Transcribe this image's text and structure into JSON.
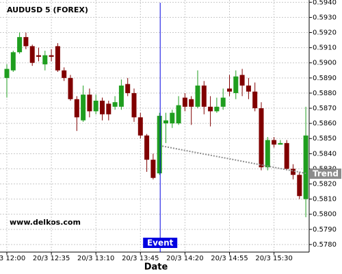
{
  "chart_data": {
    "type": "candlestick",
    "title": "AUDUSD 5 (FOREX)",
    "watermark": "www.delkos.com",
    "x_label": "Date",
    "categories": [
      "20/3 12:00",
      null,
      null,
      null,
      null,
      null,
      null,
      "20/3 12:35",
      null,
      null,
      null,
      null,
      null,
      null,
      "20/3 13:10",
      null,
      null,
      null,
      null,
      null,
      null,
      "20/3 13:45",
      null,
      null,
      null,
      null,
      null,
      null,
      "20/3 14:20",
      null,
      null,
      null,
      null,
      null,
      null,
      "20/3 14:55",
      null,
      null,
      null,
      null,
      null,
      null,
      "20/3 15:30",
      null,
      null,
      null,
      null,
      null
    ],
    "open": [
      0.589,
      0.5895,
      0.5907,
      0.5917,
      0.5911,
      0.5905,
      0.5899,
      0.5905,
      0.5911,
      0.5895,
      0.589,
      0.5876,
      0.5862,
      0.5879,
      0.5868,
      0.5875,
      0.5873,
      0.5871,
      0.5871,
      0.5886,
      0.588,
      0.5864,
      0.5852,
      0.5836,
      0.5827,
      0.586,
      0.586,
      0.586,
      0.5877,
      0.5876,
      0.5871,
      0.5885,
      0.5871,
      0.5868,
      0.5871,
      0.5883,
      0.588,
      0.5892,
      0.5885,
      0.5881,
      0.587,
      0.5831,
      0.5849,
      0.5846,
      0.5847,
      0.583,
      0.5826,
      0.581
    ],
    "high": [
      0.5899,
      0.5908,
      0.592,
      0.592,
      0.5912,
      0.591,
      0.5908,
      0.5909,
      0.5913,
      0.5897,
      0.5892,
      0.5878,
      0.5885,
      0.5883,
      0.5879,
      0.5877,
      0.5875,
      0.5878,
      0.5889,
      0.589,
      0.5883,
      0.5867,
      0.5853,
      0.584,
      0.5867,
      0.5867,
      0.5869,
      0.5878,
      0.588,
      0.5878,
      0.5895,
      0.5888,
      0.5878,
      0.5877,
      0.5883,
      0.5892,
      0.5895,
      0.5896,
      0.589,
      0.5887,
      0.5874,
      0.5851,
      0.5851,
      0.5849,
      0.5849,
      0.5833,
      0.5828,
      0.5871
    ],
    "low": [
      0.5877,
      0.5894,
      0.5906,
      0.5909,
      0.5898,
      0.5901,
      0.5895,
      0.5901,
      0.5894,
      0.5888,
      0.5875,
      0.5855,
      0.5861,
      0.5864,
      0.5866,
      0.5862,
      0.5862,
      0.5869,
      0.5869,
      0.5878,
      0.5861,
      0.585,
      0.5828,
      0.5823,
      0.5826,
      0.5847,
      0.5857,
      0.5859,
      0.5868,
      0.5859,
      0.587,
      0.5866,
      0.5858,
      0.5867,
      0.5869,
      0.5878,
      0.5876,
      0.5878,
      0.5876,
      0.5868,
      0.5829,
      0.5829,
      0.5844,
      0.5846,
      0.5829,
      0.5823,
      0.581,
      0.5798
    ],
    "close": [
      0.5896,
      0.5907,
      0.5917,
      0.5911,
      0.59,
      0.5904,
      0.5905,
      0.5904,
      0.5895,
      0.589,
      0.5876,
      0.5864,
      0.5879,
      0.5868,
      0.5875,
      0.5866,
      0.5866,
      0.5874,
      0.5885,
      0.588,
      0.5864,
      0.5852,
      0.5836,
      0.5824,
      0.5865,
      0.5862,
      0.5867,
      0.5872,
      0.5871,
      0.5871,
      0.5885,
      0.5871,
      0.5868,
      0.5871,
      0.5877,
      0.5881,
      0.5891,
      0.5885,
      0.5881,
      0.587,
      0.5831,
      0.5849,
      0.5846,
      0.5847,
      0.583,
      0.5826,
      0.5812,
      0.5852
    ],
    "up_color": "#1f9e1f",
    "down_color": "#800000",
    "ylim": [
      0.5775,
      0.59415
    ],
    "yticks": [
      {
        "value": 0.578,
        "label": "0.5780"
      },
      {
        "value": 0.579,
        "label": "0.5790"
      },
      {
        "value": 0.58,
        "label": "0.5800"
      },
      {
        "value": 0.581,
        "label": "0.5810"
      },
      {
        "value": 0.582,
        "label": "0.5820"
      },
      {
        "value": 0.583,
        "label": "0.5830"
      },
      {
        "value": 0.584,
        "label": "0.5840"
      },
      {
        "value": 0.585,
        "label": "0.5850"
      },
      {
        "value": 0.586,
        "label": "0.5860"
      },
      {
        "value": 0.587,
        "label": "0.5870"
      },
      {
        "value": 0.588,
        "label": "0.5880"
      },
      {
        "value": 0.589,
        "label": "0.5890"
      },
      {
        "value": 0.59,
        "label": "0.5900"
      },
      {
        "value": 0.591,
        "label": "0.5910"
      },
      {
        "value": 0.592,
        "label": "0.5920"
      },
      {
        "value": 0.593,
        "label": "0.5930"
      },
      {
        "value": 0.594,
        "label": "0.5940"
      }
    ],
    "grid": true,
    "event": {
      "label": "Event",
      "index": 24,
      "color": "#0000e0"
    },
    "trend": {
      "label": "Trend",
      "start_index": 24,
      "start_value": 0.5845,
      "end_index": 47,
      "end_value": 0.5827,
      "color": "#8c8c8c"
    }
  }
}
